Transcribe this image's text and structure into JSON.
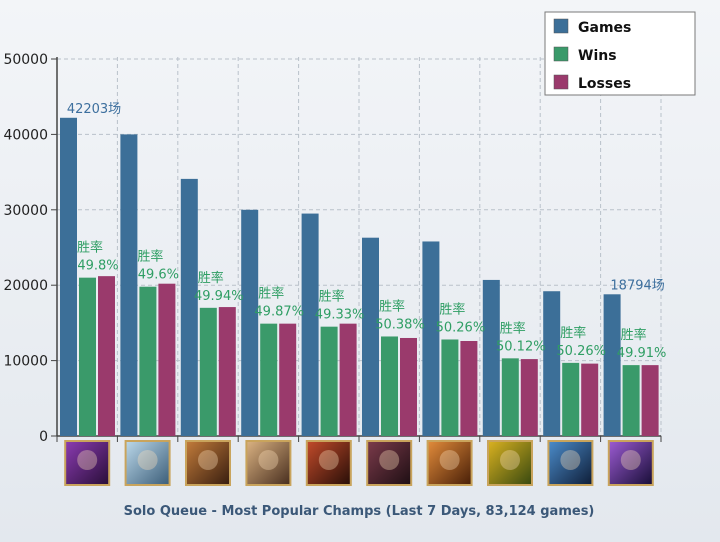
{
  "chart_data": {
    "type": "bar",
    "title": "Solo Queue - Most Popular Champs (Last 7 Days, 83,124 games)",
    "ylim": [
      0,
      50000
    ],
    "yticks": [
      "0",
      "10000",
      "20000",
      "30000",
      "40000",
      "50000"
    ],
    "grid": true,
    "legend_position": "top-right",
    "champion_icons": [
      "champion-portrait-1",
      "champion-portrait-2",
      "champion-portrait-3",
      "champion-portrait-4",
      "champion-portrait-5",
      "champion-portrait-6",
      "champion-portrait-7",
      "champion-portrait-8",
      "champion-portrait-9",
      "champion-portrait-10"
    ],
    "series": [
      {
        "name": "Games",
        "color": "#3c6f98",
        "values": [
          42203,
          40000,
          34100,
          30000,
          29500,
          26300,
          25800,
          20700,
          19200,
          18794
        ]
      },
      {
        "name": "Wins",
        "color": "#3a9a6a",
        "values": [
          21000,
          19800,
          17000,
          14900,
          14500,
          13200,
          12800,
          10300,
          9700,
          9400
        ]
      },
      {
        "name": "Losses",
        "color": "#9a3a6c",
        "values": [
          21200,
          20200,
          17100,
          14900,
          14900,
          13000,
          12600,
          10200,
          9600,
          9400
        ]
      }
    ],
    "win_rate_label": "胜率",
    "win_rates": [
      "49.8%",
      "49.6%",
      "49.94%",
      "49.87%",
      "49.33%",
      "50.38%",
      "50.26%",
      "50.12%",
      "50.26%",
      "49.91%"
    ],
    "game_count_labels": [
      {
        "index": 0,
        "text": "42203场"
      },
      {
        "index": 9,
        "text": "18794场"
      }
    ]
  }
}
